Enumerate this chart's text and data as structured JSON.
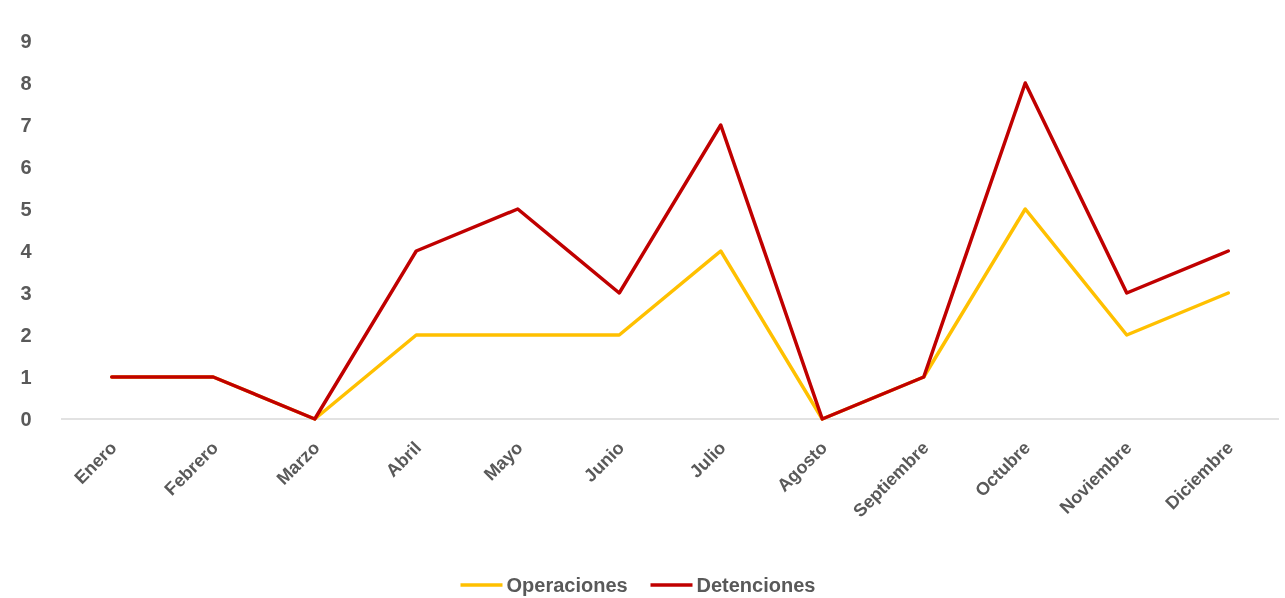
{
  "chart_data": {
    "type": "line",
    "categories": [
      "Enero",
      "Febrero",
      "Marzo",
      "Abril",
      "Mayo",
      "Junio",
      "Julio",
      "Agosto",
      "Septiembre",
      "Octubre",
      "Noviembre",
      "Diciembre"
    ],
    "series": [
      {
        "name": "Operaciones",
        "color": "#ffc000",
        "values": [
          1,
          1,
          0,
          2,
          2,
          2,
          4,
          0,
          1,
          5,
          2,
          3
        ]
      },
      {
        "name": "Detenciones",
        "color": "#c00000",
        "values": [
          1,
          1,
          0,
          4,
          5,
          3,
          7,
          0,
          1,
          8,
          3,
          4
        ]
      }
    ],
    "ylim": [
      0,
      9
    ],
    "yticks": [
      0,
      1,
      2,
      3,
      4,
      5,
      6,
      7,
      8,
      9
    ],
    "grid": false,
    "legend": "bottom",
    "marker": "none",
    "line_style": "solid"
  }
}
